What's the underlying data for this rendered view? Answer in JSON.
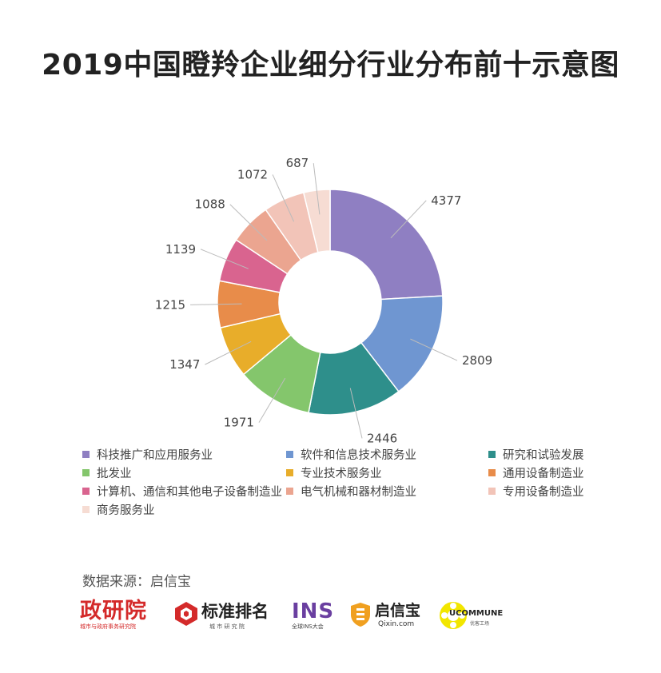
{
  "chart_data": {
    "type": "pie",
    "title": "2019中国瞪羚企业细分行业分布前十示意图",
    "series": [
      {
        "name": "科技推广和应用服务业",
        "value": 4377,
        "color": "#8f7fc2"
      },
      {
        "name": "软件和信息技术服务业",
        "value": 2809,
        "color": "#6f96d1"
      },
      {
        "name": "研究和试验发展",
        "value": 2446,
        "color": "#2e8f8b"
      },
      {
        "name": "批发业",
        "value": 1971,
        "color": "#84c66c"
      },
      {
        "name": "专业技术服务业",
        "value": 1347,
        "color": "#e8ad2a"
      },
      {
        "name": "通用设备制造业",
        "value": 1215,
        "color": "#e88c4a"
      },
      {
        "name": "计算机、通信和其他电子设备制造业",
        "value": 1139,
        "color": "#d9648f"
      },
      {
        "name": "电气机械和器材制造业",
        "value": 1088,
        "color": "#eba590"
      },
      {
        "name": "专用设备制造业",
        "value": 1072,
        "color": "#f2c4b8"
      },
      {
        "name": "商务服务业",
        "value": 687,
        "color": "#f6dcd3"
      }
    ],
    "donut": true,
    "legend_position": "bottom"
  },
  "source": "数据来源：启信宝",
  "logos": {
    "zhengyanyuan": {
      "text": "政研院",
      "sub": "城市与政府事务研究院"
    },
    "biaozhun": {
      "text": "标准排名",
      "sub": "城 市 研 究 院"
    },
    "ins": {
      "text": "INS",
      "sub": "全球INS大会"
    },
    "qixinbao": {
      "text": "启信宝",
      "sub": "Qixin.com"
    },
    "ucommune": {
      "text": "UCOMMUNE",
      "sub": "优客工场"
    }
  }
}
